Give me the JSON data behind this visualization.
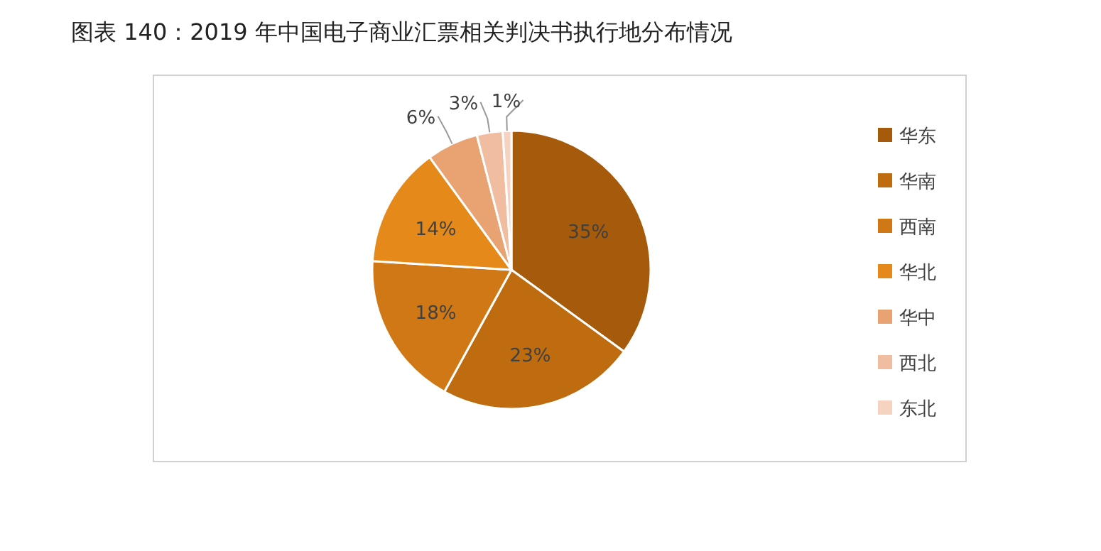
{
  "chart_data": {
    "type": "pie",
    "title": "图表 140：2019 年中国电子商业汇票相关判决书执行地分布情况",
    "categories": [
      "华东",
      "华南",
      "西南",
      "华北",
      "华中",
      "西北",
      "东北"
    ],
    "values": [
      35,
      23,
      18,
      14,
      6,
      3,
      1
    ],
    "colors": [
      "#a55a0c",
      "#bf6b0f",
      "#d07816",
      "#e58a1a",
      "#e9a373",
      "#f0bda0",
      "#f5d3c0"
    ],
    "value_labels": [
      "35%",
      "23%",
      "18%",
      "14%",
      "6%",
      "3%",
      "1%"
    ],
    "legend": "right"
  }
}
